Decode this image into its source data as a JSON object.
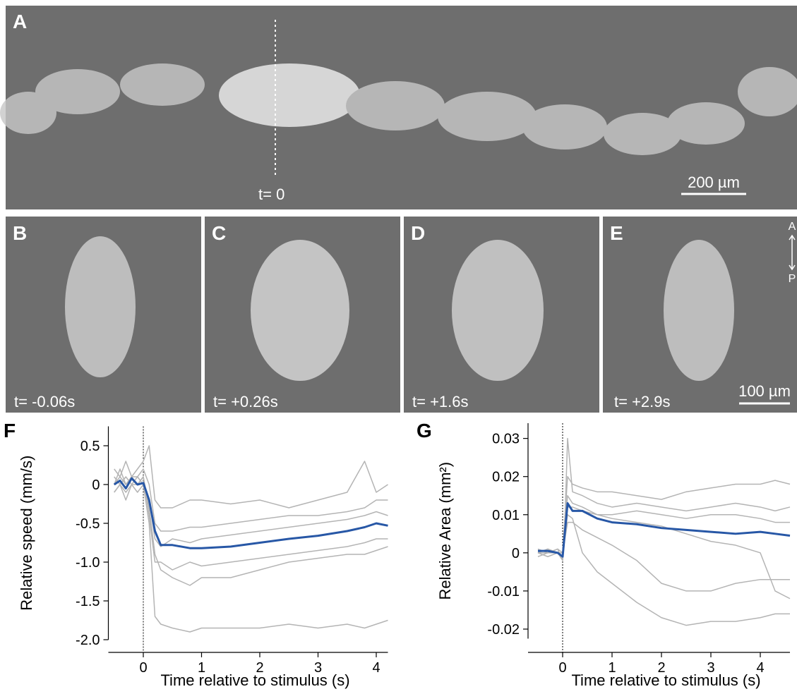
{
  "figure": {
    "panel_a": {
      "label": "A",
      "time": "t= 0",
      "scale_bar": "200 µm"
    },
    "panels": [
      {
        "label": "B",
        "time": "t= -0.06s"
      },
      {
        "label": "C",
        "time": "t= +0.26s"
      },
      {
        "label": "D",
        "time": "t= +1.6s"
      },
      {
        "label": "E",
        "time": "t= +2.9s"
      }
    ],
    "scale_bar_small": "100 µm",
    "axis_top": "A",
    "axis_bottom": "P"
  },
  "chart_data": [
    {
      "type": "line",
      "panel_label": "F",
      "x_label": "Time relative to stimulus (s)",
      "y_label": "Relative speed (mm/s)",
      "xlim": [
        -0.6,
        4.2
      ],
      "xticks": [
        0,
        1,
        2,
        3,
        4
      ],
      "ylim": [
        -2.0,
        0.75
      ],
      "yticks": [
        0.5,
        0,
        -0.5,
        {
          "value": -1,
          "label": "-1.0"
        },
        -1.5,
        {
          "value": -2,
          "label": "-2.0"
        }
      ],
      "stimulus_time": 0,
      "x": [
        -0.5,
        -0.4,
        -0.3,
        -0.2,
        -0.1,
        0,
        0.1,
        0.2,
        0.3,
        0.5,
        0.8,
        1,
        1.5,
        2,
        2.5,
        3,
        3.5,
        3.8,
        4,
        4.2
      ],
      "series": [
        {
          "color": "#b4b4b4",
          "values": [
            0.2,
            0.1,
            0.3,
            0.1,
            0.2,
            0.3,
            0.5,
            -0.2,
            -0.3,
            -0.3,
            -0.2,
            -0.2,
            -0.25,
            -0.2,
            -0.3,
            -0.2,
            -0.1,
            0.3,
            -0.1,
            0
          ]
        },
        {
          "color": "#b4b4b4",
          "values": [
            -0.1,
            0,
            -0.2,
            0,
            -0.1,
            0,
            -0.5,
            -1.7,
            -1.8,
            -1.85,
            -1.9,
            -1.85,
            -1.85,
            -1.85,
            -1.8,
            -1.85,
            -1.8,
            -1.85,
            -1.8,
            -1.75
          ]
        },
        {
          "color": "#b4b4b4",
          "values": [
            0,
            0.1,
            0,
            0.1,
            0,
            0.1,
            -0.3,
            -0.9,
            -1.1,
            -1.2,
            -1.3,
            -1.2,
            -1.2,
            -1.1,
            -1.0,
            -0.95,
            -0.9,
            -0.9,
            -0.85,
            -0.8
          ]
        },
        {
          "color": "#b4b4b4",
          "values": [
            0.1,
            0,
            0.1,
            0,
            0.1,
            0.2,
            0,
            -0.5,
            -0.6,
            -0.6,
            -0.55,
            -0.55,
            -0.5,
            -0.45,
            -0.4,
            -0.4,
            -0.35,
            -0.3,
            -0.2,
            -0.2
          ]
        },
        {
          "color": "#b4b4b4",
          "values": [
            -0.1,
            0,
            -0.1,
            0,
            0,
            0.1,
            -0.4,
            -1.0,
            -1.0,
            -1.1,
            -1.0,
            -1.05,
            -1.0,
            -0.95,
            -0.9,
            -0.85,
            -0.8,
            -0.75,
            -0.7,
            -0.7
          ]
        },
        {
          "color": "#b4b4b4",
          "values": [
            0,
            0.2,
            0,
            0.1,
            0.1,
            0,
            -0.2,
            -0.7,
            -0.8,
            -0.7,
            -0.75,
            -0.7,
            -0.65,
            -0.6,
            -0.55,
            -0.5,
            -0.45,
            -0.4,
            -0.35,
            -0.4
          ]
        },
        {
          "color": "#2757a6",
          "values": [
            0,
            0.05,
            -0.05,
            0.08,
            0,
            0.02,
            -0.2,
            -0.6,
            -0.78,
            -0.78,
            -0.82,
            -0.82,
            -0.8,
            -0.75,
            -0.7,
            -0.66,
            -0.6,
            -0.55,
            -0.5,
            -0.53
          ]
        }
      ]
    },
    {
      "type": "line",
      "panel_label": "G",
      "x_label": "Time relative to stimulus (s)",
      "y_label": "Relative Area (mm²)",
      "xlim": [
        -0.7,
        4.6
      ],
      "xticks": [
        0,
        1,
        2,
        3,
        4
      ],
      "ylim": [
        -0.0225,
        0.034
      ],
      "yticks": [
        0.03,
        0.02,
        0.01,
        0,
        -0.01,
        -0.02
      ],
      "stimulus_time": 0,
      "x": [
        -0.5,
        -0.3,
        -0.1,
        0,
        0.05,
        0.1,
        0.2,
        0.4,
        0.7,
        1,
        1.5,
        2,
        2.5,
        3,
        3.5,
        4,
        4.3,
        4.6
      ],
      "series": [
        {
          "color": "#b4b4b4",
          "values": [
            0,
            0.001,
            0,
            0,
            0.01,
            0.02,
            0.018,
            0.017,
            0.016,
            0.016,
            0.015,
            0.014,
            0.016,
            0.017,
            0.018,
            0.018,
            0.019,
            0.018
          ]
        },
        {
          "color": "#b4b4b4",
          "values": [
            0,
            -0.001,
            0,
            -0.002,
            0.005,
            0.01,
            0.009,
            0,
            -0.005,
            -0.008,
            -0.013,
            -0.017,
            -0.019,
            -0.018,
            -0.018,
            -0.017,
            -0.016,
            -0.016
          ]
        },
        {
          "color": "#b4b4b4",
          "values": [
            0.001,
            0,
            0.001,
            0,
            0.008,
            0.015,
            0.013,
            0.012,
            0.01,
            0.009,
            0.008,
            0.007,
            0.005,
            0.003,
            0.002,
            0,
            -0.01,
            -0.012
          ]
        },
        {
          "color": "#b4b4b4",
          "values": [
            0,
            0.001,
            0,
            -0.001,
            0.007,
            0.012,
            0.012,
            0.011,
            0.01,
            0.01,
            0.011,
            0.01,
            0.009,
            0.01,
            0.01,
            0.009,
            0.008,
            0.008
          ]
        },
        {
          "color": "#b4b4b4",
          "values": [
            -0.001,
            0,
            0,
            0,
            0.004,
            0.008,
            0.008,
            0.006,
            0.004,
            0.002,
            -0.002,
            -0.008,
            -0.01,
            -0.01,
            -0.008,
            -0.007,
            -0.007,
            -0.007
          ]
        },
        {
          "color": "#b4b4b4",
          "values": [
            0,
            0,
            0.001,
            -0.002,
            0.01,
            0.03,
            0.016,
            0.015,
            0.013,
            0.012,
            0.013,
            0.012,
            0.011,
            0.012,
            0.013,
            0.012,
            0.011,
            0.012
          ]
        },
        {
          "color": "#2757a6",
          "values": [
            0.0005,
            0.0005,
            0,
            -0.001,
            0.006,
            0.013,
            0.011,
            0.011,
            0.009,
            0.008,
            0.0075,
            0.0065,
            0.006,
            0.0055,
            0.005,
            0.0055,
            0.005,
            0.0045
          ]
        }
      ]
    }
  ]
}
